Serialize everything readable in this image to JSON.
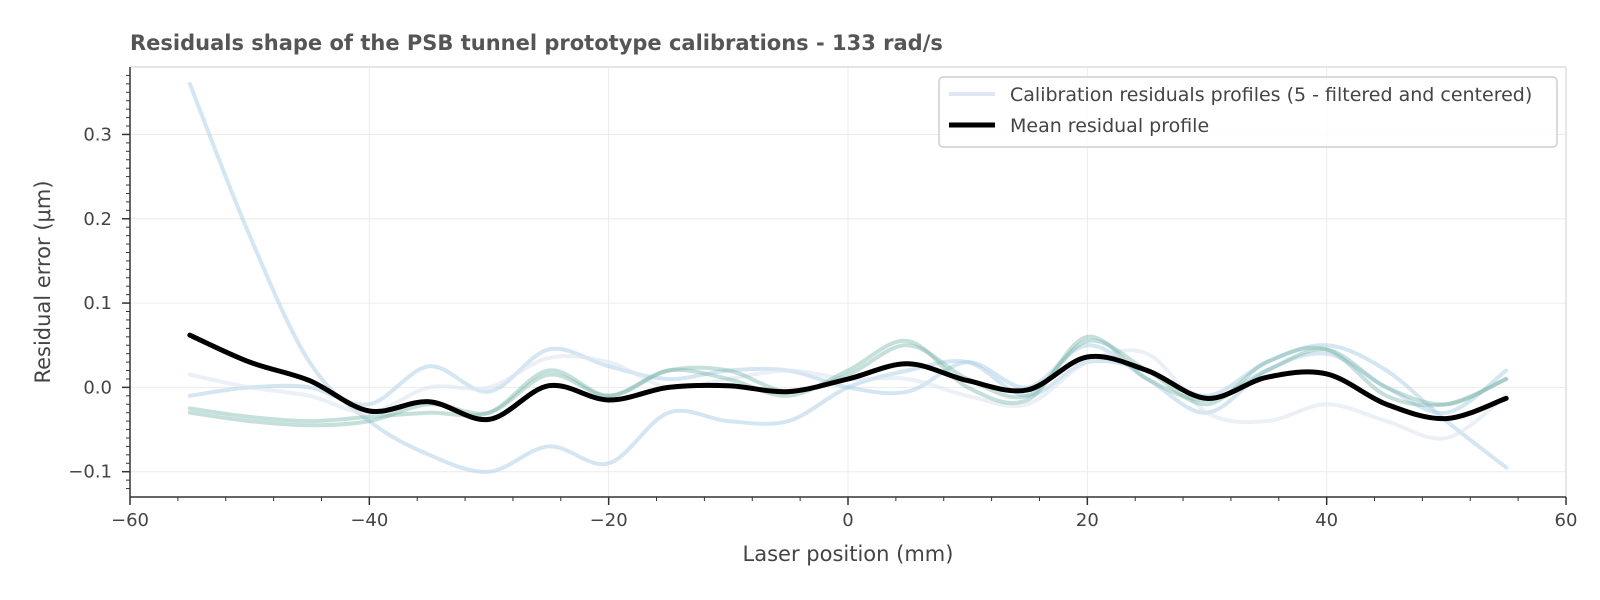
{
  "chart_data": {
    "type": "line",
    "title": "Residuals shape of the PSB tunnel prototype calibrations - 133 rad/s",
    "xlabel": "Laser position (mm)",
    "ylabel": "Residual error (μm)",
    "xlim": [
      -60,
      60
    ],
    "ylim": [
      -0.13,
      0.38
    ],
    "xticks": [
      -60,
      -40,
      -20,
      0,
      20,
      40,
      60
    ],
    "yticks": [
      -0.1,
      0.0,
      0.1,
      0.2,
      0.3
    ],
    "ytick_labels": [
      "−0.1",
      "0.0",
      "0.1",
      "0.2",
      "0.3"
    ],
    "xtick_labels": [
      "−60",
      "−40",
      "−20",
      "0",
      "20",
      "40",
      "60"
    ],
    "grid": true,
    "legend_position": "top-right",
    "legend": [
      {
        "label": "Calibration residuals profiles (5 - filtered and centered)",
        "color": "#dde6f1"
      },
      {
        "label": "Mean residual profile",
        "color": "#000000"
      }
    ],
    "x": [
      -55,
      -50,
      -45,
      -40,
      -35,
      -30,
      -25,
      -20,
      -15,
      -10,
      -5,
      0,
      5,
      10,
      15,
      20,
      25,
      30,
      35,
      40,
      45,
      50,
      55
    ],
    "series": [
      {
        "color": "#a9cde6",
        "opacity": 0.5,
        "width": 4,
        "values": [
          0.36,
          0.18,
          0.03,
          -0.04,
          -0.08,
          -0.1,
          -0.07,
          -0.09,
          -0.03,
          -0.04,
          -0.04,
          0.0,
          0.02,
          0.03,
          -0.01,
          0.03,
          0.02,
          -0.01,
          0.03,
          0.05,
          0.02,
          -0.04,
          -0.095
        ]
      },
      {
        "color": "#a9cde6",
        "opacity": 0.5,
        "width": 4,
        "values": [
          -0.01,
          0.0,
          0.0,
          -0.02,
          0.025,
          -0.005,
          0.045,
          0.025,
          0.01,
          0.02,
          0.02,
          0.0,
          -0.005,
          0.03,
          0.0,
          0.05,
          0.01,
          -0.03,
          0.02,
          0.04,
          0.0,
          -0.03,
          0.02
        ]
      },
      {
        "color": "#dde6f1",
        "opacity": 0.6,
        "width": 4,
        "values": [
          0.015,
          0.0,
          -0.01,
          -0.03,
          0.0,
          0.0,
          0.035,
          0.03,
          0.0,
          0.01,
          0.02,
          0.01,
          0.01,
          -0.01,
          -0.02,
          0.03,
          0.04,
          -0.03,
          -0.04,
          -0.02,
          -0.04,
          -0.06,
          -0.01
        ]
      },
      {
        "color": "#7fb7ac",
        "opacity": 0.45,
        "width": 4,
        "values": [
          -0.03,
          -0.04,
          -0.045,
          -0.04,
          -0.02,
          -0.03,
          0.015,
          -0.01,
          0.02,
          0.01,
          -0.01,
          0.02,
          0.055,
          0.0,
          -0.015,
          0.06,
          0.01,
          -0.015,
          0.02,
          0.045,
          0.0,
          -0.02,
          0.01
        ]
      },
      {
        "color": "#7fb7ac",
        "opacity": 0.45,
        "width": 4,
        "values": [
          -0.025,
          -0.035,
          -0.04,
          -0.035,
          -0.03,
          -0.03,
          0.02,
          -0.01,
          0.02,
          0.02,
          -0.005,
          0.015,
          0.05,
          0.01,
          -0.01,
          0.055,
          0.02,
          -0.02,
          0.03,
          0.045,
          -0.01,
          -0.02,
          0.01
        ]
      },
      {
        "name": "Mean residual profile",
        "color": "#000000",
        "opacity": 1,
        "width": 5,
        "values": [
          0.062,
          0.03,
          0.008,
          -0.028,
          -0.017,
          -0.038,
          0.002,
          -0.015,
          0.0,
          0.002,
          -0.005,
          0.01,
          0.028,
          0.008,
          -0.003,
          0.036,
          0.02,
          -0.013,
          0.012,
          0.016,
          -0.02,
          -0.037,
          -0.013
        ]
      }
    ]
  }
}
